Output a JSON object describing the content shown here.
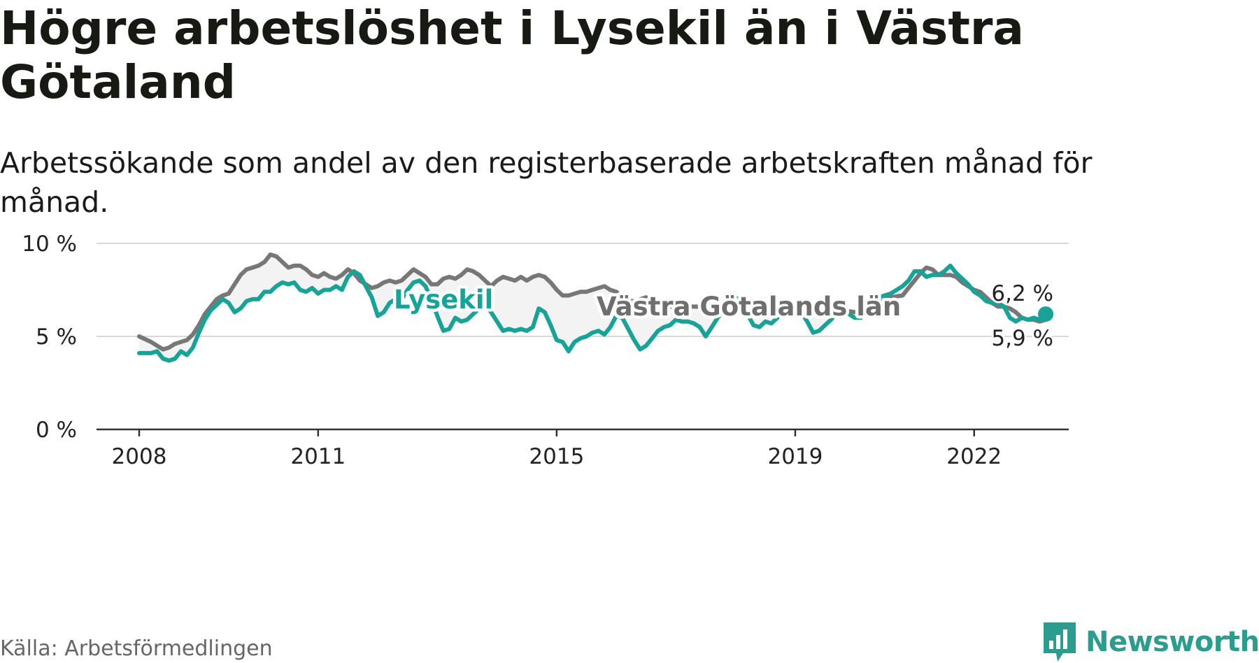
{
  "title": "Högre arbetslöshet i Lysekil än i Västra Götaland",
  "subtitle": "Arbetssökande som andel av den registerbaserade arbetskraften månad för månad.",
  "source": "Källa: Arbetsförmedlingen",
  "brand": "Newsworthy",
  "colors": {
    "lysekil": "#17a398",
    "region": "#777777",
    "grid": "#d8d8d8",
    "axis": "#333333",
    "brand": "#2a9d8f"
  },
  "chart_data": {
    "type": "line",
    "title": "Högre arbetslöshet i Lysekil än i Västra Götaland",
    "xlabel": "",
    "ylabel": "",
    "ylim": [
      0,
      10
    ],
    "xlim": [
      2007.75,
      2023.5
    ],
    "y_ticks": [
      {
        "value": 0,
        "label": "0 %"
      },
      {
        "value": 5,
        "label": "5 %"
      },
      {
        "value": 10,
        "label": "10 %"
      }
    ],
    "x_ticks": [
      {
        "value": 2008,
        "label": "2008"
      },
      {
        "value": 2011,
        "label": "2011"
      },
      {
        "value": 2015,
        "label": "2015"
      },
      {
        "value": 2019,
        "label": "2019"
      },
      {
        "value": 2022,
        "label": "2022"
      }
    ],
    "series": [
      {
        "name": "Lysekil",
        "label": "Lysekil",
        "end_label": "6,2 %",
        "points": [
          [
            2008.0,
            4.1
          ],
          [
            2008.2,
            4.1
          ],
          [
            2008.3,
            4.2
          ],
          [
            2008.4,
            3.8
          ],
          [
            2008.5,
            3.7
          ],
          [
            2008.6,
            3.8
          ],
          [
            2008.7,
            4.2
          ],
          [
            2008.8,
            4.0
          ],
          [
            2008.9,
            4.4
          ],
          [
            2009.0,
            5.2
          ],
          [
            2009.1,
            5.9
          ],
          [
            2009.2,
            6.4
          ],
          [
            2009.3,
            6.7
          ],
          [
            2009.4,
            7.0
          ],
          [
            2009.5,
            6.8
          ],
          [
            2009.6,
            6.3
          ],
          [
            2009.7,
            6.5
          ],
          [
            2009.8,
            6.9
          ],
          [
            2009.9,
            7.0
          ],
          [
            2010.0,
            7.0
          ],
          [
            2010.1,
            7.4
          ],
          [
            2010.2,
            7.4
          ],
          [
            2010.3,
            7.7
          ],
          [
            2010.4,
            7.9
          ],
          [
            2010.5,
            7.8
          ],
          [
            2010.6,
            7.9
          ],
          [
            2010.7,
            7.5
          ],
          [
            2010.8,
            7.4
          ],
          [
            2010.9,
            7.6
          ],
          [
            2011.0,
            7.3
          ],
          [
            2011.1,
            7.5
          ],
          [
            2011.2,
            7.5
          ],
          [
            2011.3,
            7.7
          ],
          [
            2011.4,
            7.5
          ],
          [
            2011.5,
            8.2
          ],
          [
            2011.6,
            8.5
          ],
          [
            2011.7,
            8.3
          ],
          [
            2011.8,
            7.7
          ],
          [
            2011.9,
            7.1
          ],
          [
            2012.0,
            6.1
          ],
          [
            2012.1,
            6.3
          ],
          [
            2012.2,
            6.8
          ],
          [
            2012.3,
            7.0
          ],
          [
            2012.4,
            7.0
          ],
          [
            2012.5,
            7.5
          ],
          [
            2012.6,
            7.9
          ],
          [
            2012.7,
            8.0
          ],
          [
            2012.8,
            7.7
          ],
          [
            2012.9,
            7.0
          ],
          [
            2013.0,
            6.1
          ],
          [
            2013.1,
            5.3
          ],
          [
            2013.2,
            5.4
          ],
          [
            2013.3,
            6.0
          ],
          [
            2013.4,
            5.8
          ],
          [
            2013.5,
            5.9
          ],
          [
            2013.6,
            6.2
          ],
          [
            2013.7,
            6.5
          ],
          [
            2013.8,
            6.7
          ],
          [
            2013.9,
            6.3
          ],
          [
            2014.0,
            5.8
          ],
          [
            2014.1,
            5.3
          ],
          [
            2014.2,
            5.4
          ],
          [
            2014.3,
            5.3
          ],
          [
            2014.4,
            5.4
          ],
          [
            2014.5,
            5.3
          ],
          [
            2014.6,
            5.5
          ],
          [
            2014.7,
            6.5
          ],
          [
            2014.8,
            6.3
          ],
          [
            2014.9,
            5.6
          ],
          [
            2015.0,
            4.8
          ],
          [
            2015.1,
            4.7
          ],
          [
            2015.2,
            4.2
          ],
          [
            2015.3,
            4.7
          ],
          [
            2015.4,
            4.9
          ],
          [
            2015.5,
            5.0
          ],
          [
            2015.6,
            5.2
          ],
          [
            2015.7,
            5.3
          ],
          [
            2015.8,
            5.1
          ],
          [
            2015.9,
            5.5
          ],
          [
            2016.0,
            6.1
          ],
          [
            2016.1,
            6.0
          ],
          [
            2016.2,
            5.4
          ],
          [
            2016.3,
            4.8
          ],
          [
            2016.4,
            4.3
          ],
          [
            2016.5,
            4.5
          ],
          [
            2016.6,
            4.9
          ],
          [
            2016.7,
            5.3
          ],
          [
            2016.8,
            5.5
          ],
          [
            2016.9,
            5.6
          ],
          [
            2017.0,
            5.9
          ],
          [
            2017.1,
            5.8
          ],
          [
            2017.2,
            5.8
          ],
          [
            2017.3,
            5.7
          ],
          [
            2017.4,
            5.5
          ],
          [
            2017.5,
            5.0
          ],
          [
            2017.6,
            5.5
          ],
          [
            2017.7,
            6.0
          ],
          [
            2017.8,
            6.4
          ],
          [
            2017.9,
            6.9
          ],
          [
            2018.0,
            7.1
          ],
          [
            2018.1,
            6.8
          ],
          [
            2018.2,
            6.2
          ],
          [
            2018.3,
            5.6
          ],
          [
            2018.4,
            5.5
          ],
          [
            2018.5,
            5.8
          ],
          [
            2018.6,
            5.7
          ],
          [
            2018.7,
            6.0
          ],
          [
            2018.8,
            6.4
          ],
          [
            2018.9,
            6.5
          ],
          [
            2019.0,
            6.4
          ],
          [
            2019.1,
            6.3
          ],
          [
            2019.2,
            5.8
          ],
          [
            2019.3,
            5.2
          ],
          [
            2019.4,
            5.3
          ],
          [
            2019.5,
            5.6
          ],
          [
            2019.6,
            5.9
          ],
          [
            2019.7,
            6.3
          ],
          [
            2019.8,
            6.4
          ],
          [
            2019.9,
            6.2
          ],
          [
            2020.0,
            6.0
          ],
          [
            2020.1,
            6.0
          ],
          [
            2020.2,
            6.3
          ],
          [
            2020.3,
            6.8
          ],
          [
            2020.4,
            7.1
          ],
          [
            2020.5,
            7.2
          ],
          [
            2020.6,
            7.3
          ],
          [
            2020.7,
            7.5
          ],
          [
            2020.8,
            7.7
          ],
          [
            2020.9,
            8.0
          ],
          [
            2021.0,
            8.5
          ],
          [
            2021.1,
            8.5
          ],
          [
            2021.2,
            8.2
          ],
          [
            2021.3,
            8.3
          ],
          [
            2021.4,
            8.3
          ],
          [
            2021.5,
            8.5
          ],
          [
            2021.6,
            8.8
          ],
          [
            2021.7,
            8.4
          ],
          [
            2021.8,
            8.1
          ],
          [
            2021.9,
            7.8
          ],
          [
            2022.0,
            7.4
          ],
          [
            2022.1,
            7.2
          ],
          [
            2022.2,
            6.9
          ],
          [
            2022.3,
            6.8
          ],
          [
            2022.4,
            6.8
          ],
          [
            2022.5,
            6.6
          ],
          [
            2022.6,
            6.0
          ],
          [
            2022.7,
            5.8
          ],
          [
            2022.8,
            6.0
          ],
          [
            2022.9,
            5.9
          ],
          [
            2023.0,
            6.0
          ],
          [
            2023.1,
            5.9
          ],
          [
            2023.2,
            6.2
          ]
        ]
      },
      {
        "name": "Västra Götalands län",
        "label": "Västra Götalands län",
        "end_label": "5,9 %",
        "points": [
          [
            2008.0,
            5.0
          ],
          [
            2008.2,
            4.7
          ],
          [
            2008.3,
            4.5
          ],
          [
            2008.4,
            4.3
          ],
          [
            2008.5,
            4.4
          ],
          [
            2008.6,
            4.6
          ],
          [
            2008.8,
            4.8
          ],
          [
            2008.9,
            5.1
          ],
          [
            2009.0,
            5.6
          ],
          [
            2009.1,
            6.2
          ],
          [
            2009.2,
            6.6
          ],
          [
            2009.3,
            7.0
          ],
          [
            2009.4,
            7.2
          ],
          [
            2009.5,
            7.3
          ],
          [
            2009.6,
            7.8
          ],
          [
            2009.7,
            8.3
          ],
          [
            2009.8,
            8.6
          ],
          [
            2009.9,
            8.7
          ],
          [
            2010.0,
            8.8
          ],
          [
            2010.1,
            9.0
          ],
          [
            2010.2,
            9.4
          ],
          [
            2010.3,
            9.3
          ],
          [
            2010.4,
            9.0
          ],
          [
            2010.5,
            8.7
          ],
          [
            2010.6,
            8.8
          ],
          [
            2010.7,
            8.8
          ],
          [
            2010.8,
            8.6
          ],
          [
            2010.9,
            8.3
          ],
          [
            2011.0,
            8.2
          ],
          [
            2011.1,
            8.4
          ],
          [
            2011.2,
            8.2
          ],
          [
            2011.3,
            8.1
          ],
          [
            2011.4,
            8.3
          ],
          [
            2011.5,
            8.6
          ],
          [
            2011.6,
            8.4
          ],
          [
            2011.7,
            8.0
          ],
          [
            2011.8,
            7.8
          ],
          [
            2011.9,
            7.6
          ],
          [
            2012.0,
            7.7
          ],
          [
            2012.1,
            7.9
          ],
          [
            2012.2,
            8.0
          ],
          [
            2012.3,
            7.9
          ],
          [
            2012.4,
            8.0
          ],
          [
            2012.5,
            8.3
          ],
          [
            2012.6,
            8.6
          ],
          [
            2012.7,
            8.4
          ],
          [
            2012.8,
            8.2
          ],
          [
            2012.9,
            7.8
          ],
          [
            2013.0,
            7.8
          ],
          [
            2013.1,
            8.1
          ],
          [
            2013.2,
            8.2
          ],
          [
            2013.3,
            8.1
          ],
          [
            2013.4,
            8.3
          ],
          [
            2013.5,
            8.6
          ],
          [
            2013.6,
            8.5
          ],
          [
            2013.7,
            8.3
          ],
          [
            2013.8,
            8.0
          ],
          [
            2013.9,
            7.7
          ],
          [
            2014.0,
            8.0
          ],
          [
            2014.1,
            8.2
          ],
          [
            2014.2,
            8.1
          ],
          [
            2014.3,
            8.0
          ],
          [
            2014.4,
            8.2
          ],
          [
            2014.5,
            8.0
          ],
          [
            2014.6,
            8.2
          ],
          [
            2014.7,
            8.3
          ],
          [
            2014.8,
            8.2
          ],
          [
            2014.9,
            7.9
          ],
          [
            2015.0,
            7.5
          ],
          [
            2015.1,
            7.2
          ],
          [
            2015.2,
            7.2
          ],
          [
            2015.3,
            7.3
          ],
          [
            2015.4,
            7.4
          ],
          [
            2015.5,
            7.4
          ],
          [
            2015.6,
            7.5
          ],
          [
            2015.7,
            7.6
          ],
          [
            2015.8,
            7.7
          ],
          [
            2015.9,
            7.5
          ],
          [
            2016.0,
            7.4
          ],
          [
            2016.1,
            7.1
          ],
          [
            2016.2,
            6.9
          ],
          [
            2016.3,
            6.9
          ],
          [
            2016.4,
            7.0
          ],
          [
            2016.5,
            7.1
          ],
          [
            2016.6,
            6.9
          ],
          [
            2016.7,
            6.8
          ],
          [
            2016.8,
            6.7
          ],
          [
            2016.9,
            6.6
          ],
          [
            2017.0,
            6.6
          ],
          [
            2017.2,
            6.6
          ],
          [
            2017.4,
            6.6
          ],
          [
            2017.6,
            6.7
          ],
          [
            2017.8,
            6.7
          ],
          [
            2018.0,
            6.8
          ],
          [
            2018.2,
            6.7
          ],
          [
            2018.4,
            6.6
          ],
          [
            2018.6,
            6.6
          ],
          [
            2018.8,
            6.6
          ],
          [
            2019.0,
            6.5
          ],
          [
            2019.2,
            6.4
          ],
          [
            2019.4,
            6.4
          ],
          [
            2019.6,
            6.4
          ],
          [
            2019.8,
            6.4
          ],
          [
            2020.0,
            6.3
          ],
          [
            2020.2,
            6.5
          ],
          [
            2020.4,
            6.8
          ],
          [
            2020.6,
            7.1
          ],
          [
            2020.8,
            7.2
          ],
          [
            2020.9,
            7.6
          ],
          [
            2021.0,
            8.0
          ],
          [
            2021.1,
            8.4
          ],
          [
            2021.2,
            8.7
          ],
          [
            2021.3,
            8.6
          ],
          [
            2021.4,
            8.3
          ],
          [
            2021.5,
            8.3
          ],
          [
            2021.6,
            8.3
          ],
          [
            2021.7,
            8.2
          ],
          [
            2021.8,
            7.9
          ],
          [
            2021.9,
            7.7
          ],
          [
            2022.0,
            7.5
          ],
          [
            2022.1,
            7.4
          ],
          [
            2022.2,
            7.1
          ],
          [
            2022.3,
            6.8
          ],
          [
            2022.4,
            6.6
          ],
          [
            2022.5,
            6.6
          ],
          [
            2022.6,
            6.5
          ],
          [
            2022.7,
            6.3
          ],
          [
            2022.8,
            6.0
          ],
          [
            2022.9,
            5.9
          ],
          [
            2023.0,
            5.9
          ],
          [
            2023.1,
            5.8
          ],
          [
            2023.2,
            5.9
          ]
        ]
      }
    ]
  }
}
